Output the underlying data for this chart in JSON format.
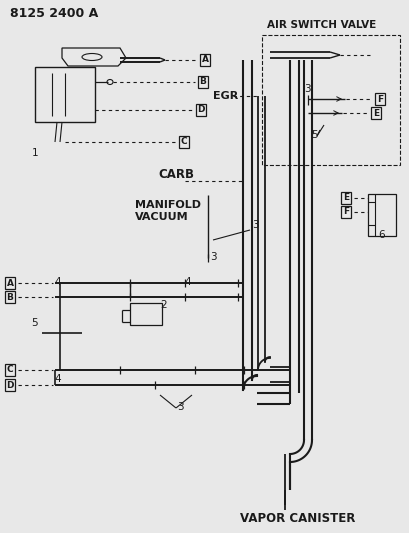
{
  "title": "8125 2400 A",
  "bg_color": "#e8e8e8",
  "line_color": "#1a1a1a",
  "labels": {
    "air_switch_valve": "AIR SWITCH VALVE",
    "egr": "EGR",
    "carb": "CARB",
    "manifold_vacuum_1": "MANIFOLD",
    "manifold_vacuum_2": "VACUUM",
    "vapor_canister": "VAPOR CANISTER"
  },
  "figsize": [
    4.1,
    5.33
  ],
  "dpi": 100
}
